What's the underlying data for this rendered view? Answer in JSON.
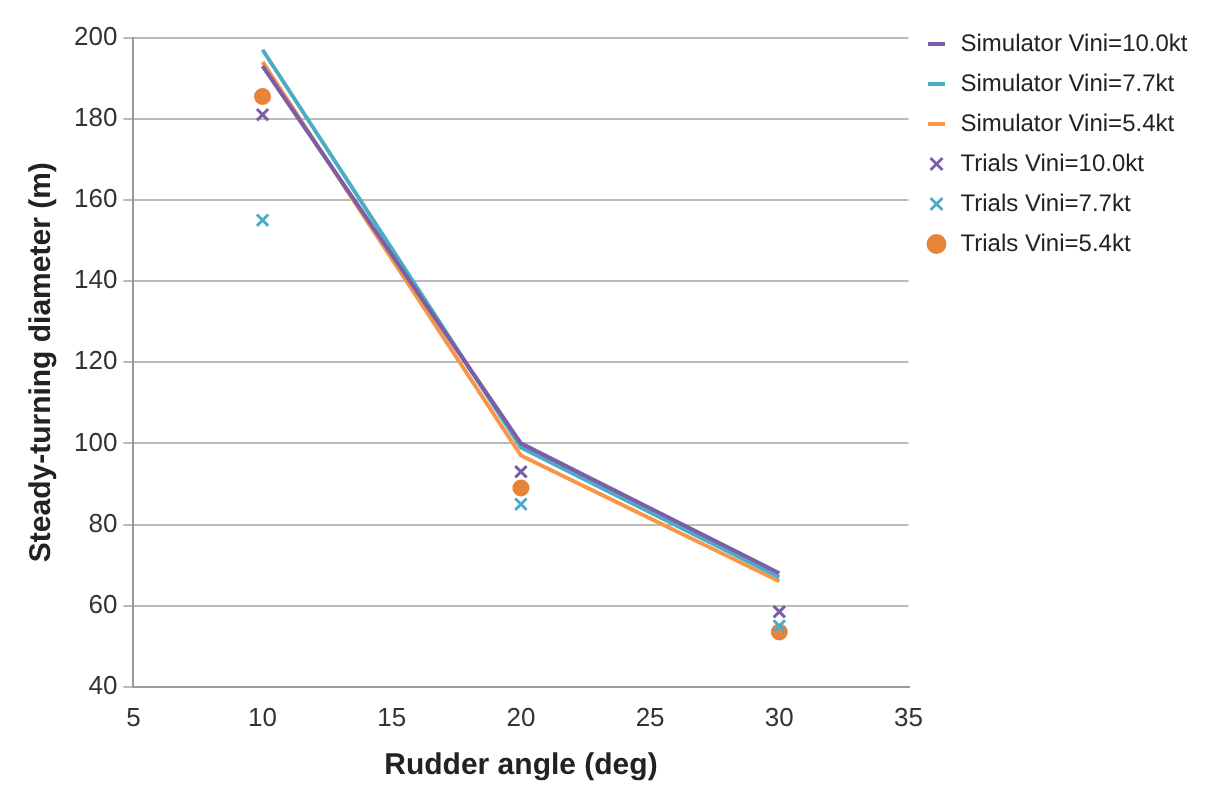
{
  "chart_data": {
    "type": "line",
    "xlabel": "Rudder angle (deg)",
    "ylabel": "Steady-turning diameter (m)",
    "xlim": [
      5,
      35
    ],
    "xticks": [
      5,
      10,
      15,
      20,
      25,
      30,
      35
    ],
    "ylim": [
      40,
      200
    ],
    "yticks": [
      40,
      60,
      80,
      100,
      120,
      140,
      160,
      180,
      200
    ],
    "grid": "y",
    "legend": "right",
    "series": [
      {
        "name": "Simulator Vini=10.0kt",
        "marker": "none",
        "color": "#7b5ea7",
        "x": [
          10,
          20,
          30
        ],
        "values": [
          193,
          100,
          68
        ]
      },
      {
        "name": "Simulator Vini=7.7kt",
        "marker": "none",
        "color": "#4bacc6",
        "x": [
          10,
          20,
          30
        ],
        "values": [
          197,
          99,
          67
        ]
      },
      {
        "name": "Simulator Vini=5.4kt",
        "marker": "none",
        "color": "#f79646",
        "x": [
          10,
          20,
          30
        ],
        "values": [
          194,
          97,
          66
        ]
      },
      {
        "name": "Trials Vini=10.0kt",
        "type": "scatter",
        "marker": "cross",
        "color": "#7b5ea7",
        "x": [
          10,
          20,
          30
        ],
        "values": [
          181,
          93,
          58.5
        ]
      },
      {
        "name": "Trials Vini=7.7kt",
        "type": "scatter",
        "marker": "cross",
        "color": "#4bacc6",
        "x": [
          10,
          20,
          30
        ],
        "values": [
          155,
          85,
          55
        ]
      },
      {
        "name": "Trials Vini=5.4kt",
        "type": "scatter",
        "marker": "circle",
        "color": "#e8833a",
        "x": [
          10,
          20,
          30
        ],
        "values": [
          185.5,
          89,
          53.5
        ]
      }
    ]
  }
}
